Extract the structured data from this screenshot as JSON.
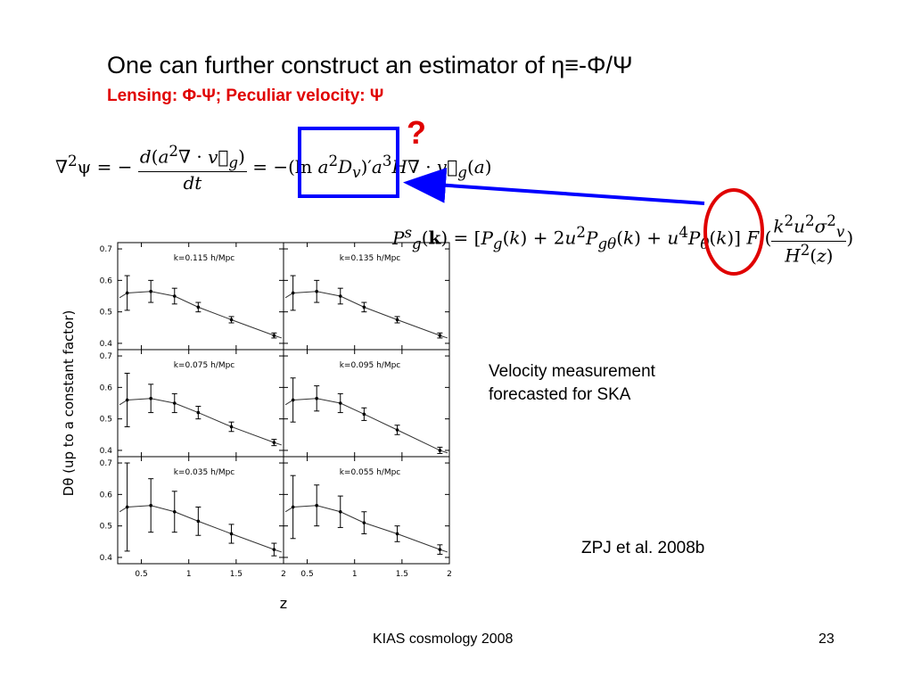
{
  "slide": {
    "title": "One can further construct an estimator of η≡-Φ/Ψ",
    "subtitle": "Lensing: Φ-Ψ; Peculiar velocity: Ψ",
    "question_mark": "?",
    "velocity_note_line1": "Velocity measurement",
    "velocity_note_line2": "forecasted for SKA",
    "citation": "ZPJ et al. 2008b",
    "footer_left": "KIAS cosmology 2008",
    "footer_right": "23"
  },
  "colors": {
    "accent_red": "#e00000",
    "accent_blue": "#0000ff"
  },
  "chart_data": {
    "type": "scatter",
    "xlabel": "z",
    "ylabel": "Dθ (up to a constant factor)",
    "xlim": [
      0.25,
      2.0
    ],
    "ylim": [
      0.38,
      0.72
    ],
    "x_ticks": [
      "0.5",
      "1",
      "1.5",
      "2"
    ],
    "y_ticks": [
      "0.4",
      "0.5",
      "0.6",
      "0.7"
    ],
    "panels": [
      {
        "label": "k=0.115 h/Mpc",
        "points": [
          [
            0.35,
            0.56
          ],
          [
            0.6,
            0.565
          ],
          [
            0.85,
            0.55
          ],
          [
            1.1,
            0.515
          ],
          [
            1.45,
            0.475
          ],
          [
            1.9,
            0.425
          ]
        ],
        "errors": [
          0.055,
          0.035,
          0.025,
          0.015,
          0.01,
          0.008
        ]
      },
      {
        "label": "k=0.135 h/Mpc",
        "points": [
          [
            0.35,
            0.56
          ],
          [
            0.6,
            0.565
          ],
          [
            0.85,
            0.55
          ],
          [
            1.1,
            0.515
          ],
          [
            1.45,
            0.475
          ],
          [
            1.9,
            0.425
          ]
        ],
        "errors": [
          0.055,
          0.035,
          0.025,
          0.015,
          0.01,
          0.008
        ]
      },
      {
        "label": "k=0.075 h/Mpc",
        "points": [
          [
            0.35,
            0.56
          ],
          [
            0.6,
            0.565
          ],
          [
            0.85,
            0.55
          ],
          [
            1.1,
            0.52
          ],
          [
            1.45,
            0.475
          ],
          [
            1.9,
            0.425
          ]
        ],
        "errors": [
          0.085,
          0.045,
          0.03,
          0.02,
          0.015,
          0.01
        ]
      },
      {
        "label": "k=0.095 h/Mpc",
        "points": [
          [
            0.35,
            0.56
          ],
          [
            0.6,
            0.565
          ],
          [
            0.85,
            0.55
          ],
          [
            1.1,
            0.515
          ],
          [
            1.45,
            0.465
          ],
          [
            1.9,
            0.4
          ]
        ],
        "errors": [
          0.07,
          0.04,
          0.03,
          0.02,
          0.015,
          0.01
        ]
      },
      {
        "label": "k=0.035 h/Mpc",
        "points": [
          [
            0.35,
            0.56
          ],
          [
            0.6,
            0.565
          ],
          [
            0.85,
            0.545
          ],
          [
            1.1,
            0.515
          ],
          [
            1.45,
            0.475
          ],
          [
            1.9,
            0.425
          ]
        ],
        "errors": [
          0.14,
          0.085,
          0.065,
          0.045,
          0.03,
          0.02
        ]
      },
      {
        "label": "k=0.055 h/Mpc",
        "points": [
          [
            0.35,
            0.56
          ],
          [
            0.6,
            0.565
          ],
          [
            0.85,
            0.545
          ],
          [
            1.1,
            0.51
          ],
          [
            1.45,
            0.475
          ],
          [
            1.9,
            0.425
          ]
        ],
        "errors": [
          0.1,
          0.065,
          0.05,
          0.035,
          0.025,
          0.015
        ]
      }
    ]
  }
}
